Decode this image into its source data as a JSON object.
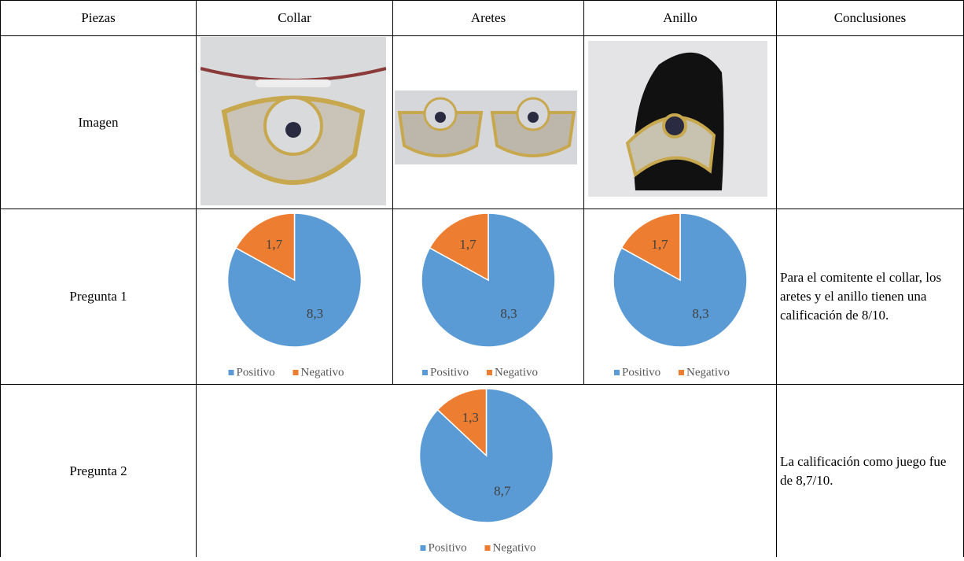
{
  "table": {
    "header": [
      "Piezas",
      "Collar",
      "Aretes",
      "Anillo",
      "Conclusiones"
    ],
    "rows": [
      {
        "label": "Imagen"
      },
      {
        "label": "Pregunta 1",
        "charts": [
          {
            "type": "pie",
            "categories": [
              "Positivo",
              "Negativo"
            ],
            "values": [
              8.3,
              1.7
            ],
            "value_labels": [
              "8,3",
              "1,7"
            ],
            "colors": [
              "#5b9bd5",
              "#ed7d31"
            ]
          },
          {
            "type": "pie",
            "categories": [
              "Positivo",
              "Negativo"
            ],
            "values": [
              8.3,
              1.7
            ],
            "value_labels": [
              "8,3",
              "1,7"
            ],
            "colors": [
              "#5b9bd5",
              "#ed7d31"
            ]
          },
          {
            "type": "pie",
            "categories": [
              "Positivo",
              "Negativo"
            ],
            "values": [
              8.3,
              1.7
            ],
            "value_labels": [
              "8,3",
              "1,7"
            ],
            "colors": [
              "#5b9bd5",
              "#ed7d31"
            ]
          }
        ],
        "conclusion": "Para el comitente el collar, los aretes y el anillo tienen una calificación de 8/10."
      },
      {
        "label": "Pregunta 2",
        "charts": [
          {
            "type": "pie",
            "categories": [
              "Positivo",
              "Negativo"
            ],
            "values": [
              8.7,
              1.3
            ],
            "value_labels": [
              "8,7",
              "1,3"
            ],
            "colors": [
              "#5b9bd5",
              "#ed7d31"
            ]
          }
        ],
        "conclusion": "La calificación como juego fue de 8,7/10."
      }
    ]
  }
}
